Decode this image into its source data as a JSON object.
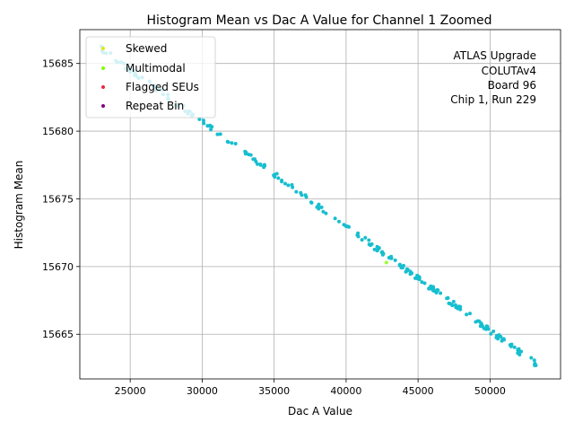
{
  "chart_data": {
    "type": "scatter",
    "title": "Histogram Mean vs Dac A Value for Channel 1 Zoomed",
    "xlabel": "Dac A Value",
    "ylabel": "Histogram Mean",
    "xlim": [
      21500,
      54900
    ],
    "ylim": [
      15661.7,
      15687.5
    ],
    "x_ticks": [
      25000,
      30000,
      35000,
      40000,
      45000,
      50000
    ],
    "x_tick_labels": [
      "25000",
      "30000",
      "35000",
      "40000",
      "45000",
      "50000"
    ],
    "y_ticks": [
      15665,
      15670,
      15675,
      15680,
      15685
    ],
    "y_tick_labels": [
      "15665",
      "15670",
      "15675",
      "15680",
      "15685"
    ],
    "grid": true,
    "legend_position": "top-left",
    "annotation": [
      "ATLAS Upgrade",
      "COLUTAv4",
      "Board 96",
      "Chip 1, Run 229"
    ],
    "series": [
      {
        "name": "Skewed",
        "color": "#ffff66",
        "legend_color": "#e6e61a"
      },
      {
        "name": "Multimodal",
        "color": "#99ff33",
        "legend_color": "#7fff00"
      },
      {
        "name": "Flagged SEUs",
        "color": "#ff3333",
        "legend_color": "#e8283e"
      },
      {
        "name": "Repeat Bin",
        "color": "#800080",
        "legend_color": "#800080"
      }
    ],
    "main_series": {
      "color": "#17becf",
      "trend": {
        "x0": 23000,
        "y0": 15686.1,
        "x1": 53200,
        "y1": 15662.8
      },
      "x_range": [
        23000,
        53300
      ],
      "n_points": 230,
      "scatter_sd": 0.2
    },
    "highlight_points": [
      {
        "x": 42800,
        "y": 15670.3,
        "color": "#99ff33"
      }
    ]
  }
}
